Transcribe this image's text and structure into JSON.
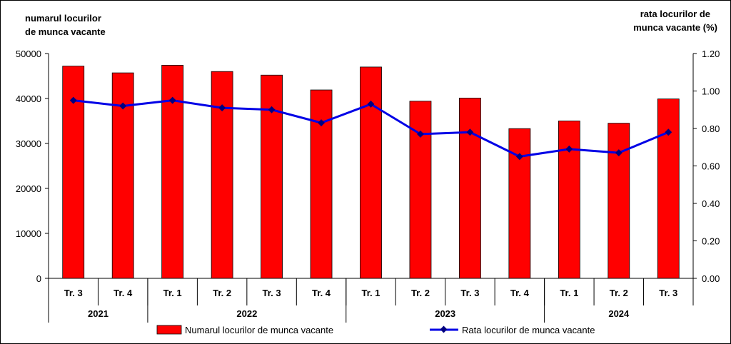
{
  "chart_data": {
    "type": "bar",
    "y_left_label_lines": [
      "numarul locurilor",
      "de munca  vacante"
    ],
    "y_right_label_lines": [
      "rata locurilor  de",
      "munca vacante (%)"
    ],
    "y_left_ticks": [
      "0",
      "10000",
      "20000",
      "30000",
      "40000",
      "50000"
    ],
    "y_right_ticks": [
      "0.00",
      "0.20",
      "0.40",
      "0.60",
      "0.80",
      "1.00",
      "1.20"
    ],
    "ylim_left": [
      0,
      50000
    ],
    "ylim_right": [
      0,
      1.2
    ],
    "categories": [
      "Tr. 3",
      "Tr. 4",
      "Tr. 1",
      "Tr. 2",
      "Tr. 3",
      "Tr. 4",
      "Tr. 1",
      "Tr. 2",
      "Tr. 3",
      "Tr. 4",
      "Tr. 1",
      "Tr. 2",
      "Tr. 3"
    ],
    "groups": [
      {
        "label": "2021",
        "count": 2
      },
      {
        "label": "2022",
        "count": 4
      },
      {
        "label": "2023",
        "count": 4
      },
      {
        "label": "2024",
        "count": 3
      }
    ],
    "series": [
      {
        "name": "Numarul locurilor de munca vacante",
        "kind": "bar",
        "axis": "left",
        "color": "#ff0000",
        "values": [
          47200,
          45700,
          47400,
          46000,
          45200,
          41900,
          47000,
          39400,
          40100,
          33300,
          35000,
          34500,
          39900
        ]
      },
      {
        "name": "Rata locurilor de munca vacante",
        "kind": "line",
        "axis": "right",
        "color": "#0000e6",
        "values": [
          0.95,
          0.92,
          0.95,
          0.91,
          0.9,
          0.83,
          0.93,
          0.77,
          0.78,
          0.65,
          0.69,
          0.67,
          0.78
        ]
      }
    ],
    "grid": false,
    "legend_position": "bottom"
  }
}
